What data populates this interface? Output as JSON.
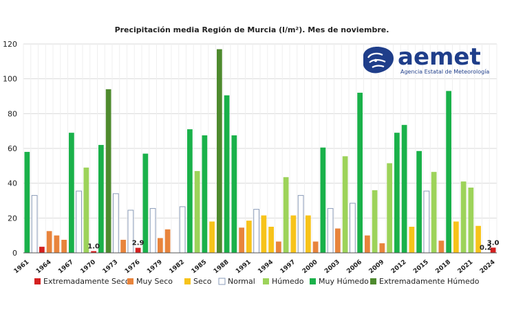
{
  "chart_data": {
    "type": "bar",
    "title": "Precipitación media Región de Murcia (l/m²). Mes de noviembre.",
    "xlabel": "",
    "ylabel": "",
    "ylim": [
      0,
      120
    ],
    "yticks": [
      0,
      20,
      40,
      60,
      80,
      100,
      120
    ],
    "years": [
      1961,
      1962,
      1963,
      1964,
      1965,
      1966,
      1967,
      1968,
      1969,
      1970,
      1971,
      1972,
      1973,
      1974,
      1975,
      1976,
      1977,
      1978,
      1979,
      1980,
      1981,
      1982,
      1983,
      1984,
      1985,
      1986,
      1987,
      1988,
      1989,
      1990,
      1991,
      1992,
      1993,
      1994,
      1995,
      1996,
      1997,
      1998,
      1999,
      2000,
      2001,
      2002,
      2003,
      2004,
      2005,
      2006,
      2007,
      2008,
      2009,
      2010,
      2011,
      2012,
      2013,
      2014,
      2015,
      2016,
      2017,
      2018,
      2019,
      2020,
      2021,
      2022,
      2023,
      2024
    ],
    "values": [
      58,
      33,
      3.5,
      12.5,
      10,
      7.5,
      69,
      35.5,
      49,
      1.0,
      62,
      94,
      34,
      7.5,
      24.5,
      2.9,
      57,
      25.5,
      8.5,
      13.5,
      0,
      26.5,
      71,
      47,
      67.5,
      18,
      117,
      90.5,
      67.5,
      14.5,
      18.5,
      25,
      21.5,
      15,
      6.5,
      43.5,
      21.5,
      33,
      21.5,
      6.5,
      60.5,
      25.5,
      14,
      55.5,
      28.5,
      92,
      10,
      36,
      5.5,
      51.5,
      69,
      73.5,
      15,
      58.5,
      35.5,
      46.5,
      7,
      93,
      18,
      41,
      37.5,
      15.5,
      0.2,
      3.0
    ],
    "classes": [
      "MH",
      "N",
      "ES",
      "MS",
      "MS",
      "MS",
      "MH",
      "N",
      "H",
      "ES",
      "MH",
      "EH",
      "N",
      "MS",
      "N",
      "ES",
      "MH",
      "N",
      "MS",
      "MS",
      "ES",
      "N",
      "MH",
      "H",
      "MH",
      "S",
      "EH",
      "MH",
      "MH",
      "MS",
      "S",
      "N",
      "S",
      "S",
      "MS",
      "H",
      "S",
      "N",
      "S",
      "MS",
      "MH",
      "N",
      "MS",
      "H",
      "N",
      "MH",
      "MS",
      "H",
      "MS",
      "H",
      "MH",
      "MH",
      "S",
      "MH",
      "N",
      "H",
      "MS",
      "MH",
      "S",
      "H",
      "H",
      "S",
      "ES",
      "ES"
    ],
    "x_tick_labels": [
      "1961",
      "1964",
      "1967",
      "1970",
      "1973",
      "1976",
      "1979",
      "1982",
      "1985",
      "1988",
      "1991",
      "1994",
      "1997",
      "2000",
      "2003",
      "2006",
      "2009",
      "2012",
      "2015",
      "2018",
      "2021",
      "2024"
    ],
    "data_labels": [
      {
        "year": 1970,
        "text": "1.0"
      },
      {
        "year": 1976,
        "text": "2.9"
      },
      {
        "year": 2023,
        "text": "0.2"
      },
      {
        "year": 2024,
        "text": "3.0"
      }
    ],
    "legend": [
      {
        "key": "ES",
        "label": "Extremadamente Seco",
        "color": "#d42020"
      },
      {
        "key": "MS",
        "label": "Muy Seco",
        "color": "#e8843c"
      },
      {
        "key": "S",
        "label": "Seco",
        "color": "#f7c31a"
      },
      {
        "key": "N",
        "label": "Normal",
        "color": "#ffffff"
      },
      {
        "key": "H",
        "label": "Húmedo",
        "color": "#9dd35a"
      },
      {
        "key": "MH",
        "label": "Muy Húmedo",
        "color": "#1ab14a"
      },
      {
        "key": "EH",
        "label": "Extremadamente Húmedo",
        "color": "#4e8a2e"
      }
    ],
    "grid": true,
    "legend_position": "bottom"
  },
  "logo": {
    "word": "aemet",
    "subtitle": "Agencia Estatal de Meteorología",
    "color": "#1f3e8a"
  },
  "colors": {
    "grid": "#d9d9d9",
    "axis": "#555555",
    "normal_border": "#8a9bb8"
  }
}
